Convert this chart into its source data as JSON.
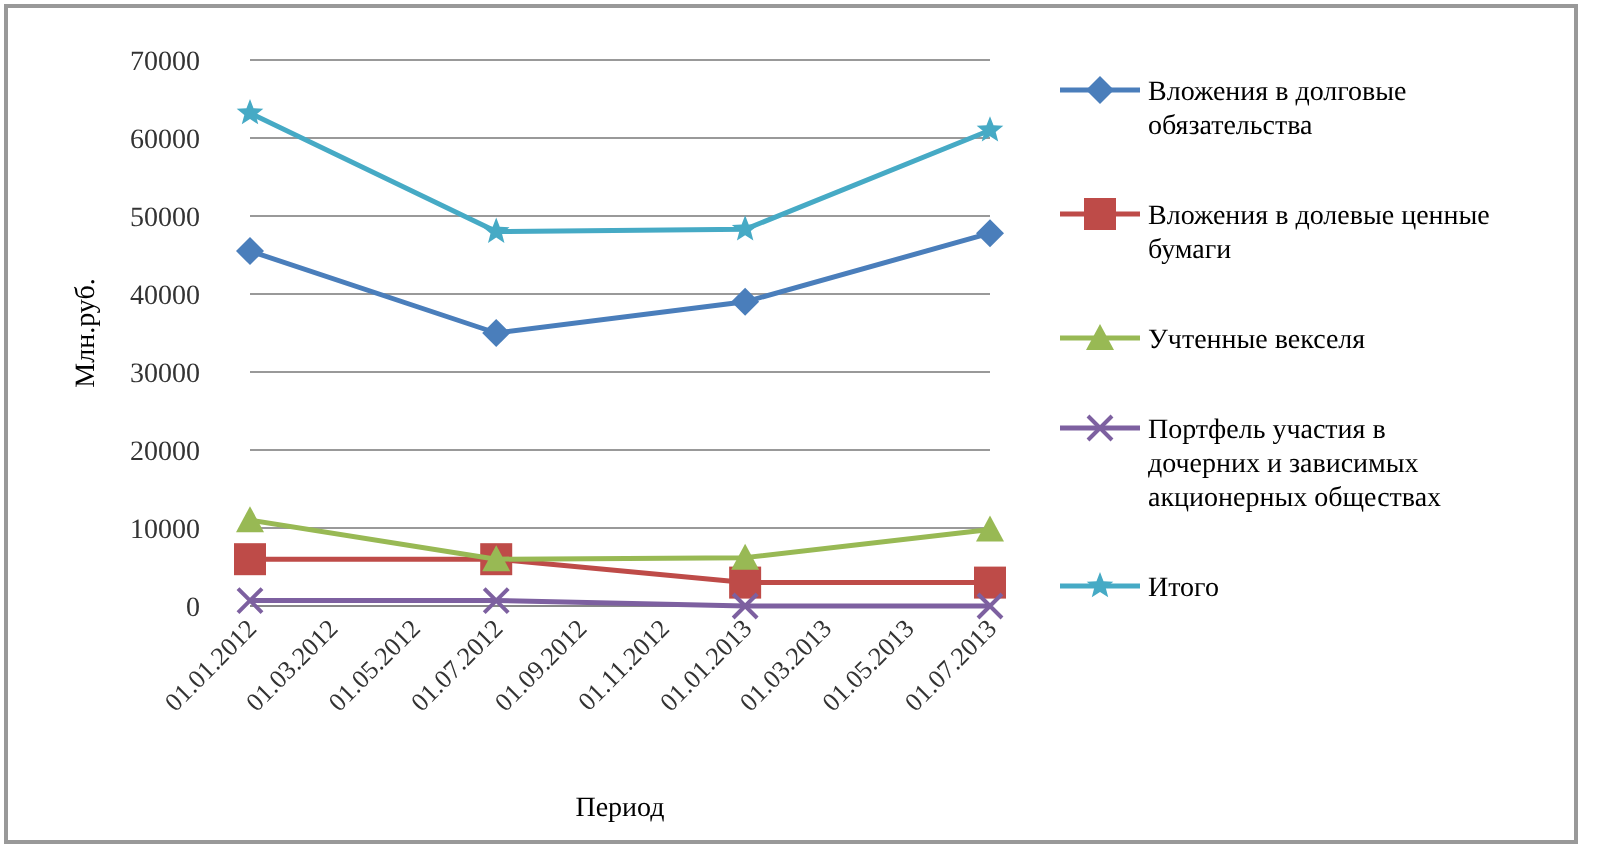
{
  "chart_data": {
    "type": "line",
    "xlabel": "Период",
    "ylabel": "Млн.руб.",
    "x": [
      "2012-01-01",
      "2012-07-01",
      "2013-01-01",
      "2013-07-01"
    ],
    "xlim": [
      "2012-01-01",
      "2013-07-01"
    ],
    "xticks": [
      {
        "value": "2012-01-01",
        "label": "01.01.2012"
      },
      {
        "value": "2012-03-01",
        "label": "01.03.2012"
      },
      {
        "value": "2012-05-01",
        "label": "01.05.2012"
      },
      {
        "value": "2012-07-01",
        "label": "01.07.2012"
      },
      {
        "value": "2012-09-01",
        "label": "01.09.2012"
      },
      {
        "value": "2012-11-01",
        "label": "01.11.2012"
      },
      {
        "value": "2013-01-01",
        "label": "01.01.2013"
      },
      {
        "value": "2013-03-01",
        "label": "01.03.2013"
      },
      {
        "value": "2013-05-01",
        "label": "01.05.2013"
      },
      {
        "value": "2013-07-01",
        "label": "01.07.2013"
      }
    ],
    "ylim": [
      0,
      70000
    ],
    "yticks": [
      0,
      10000,
      20000,
      30000,
      40000,
      50000,
      60000,
      70000
    ],
    "grid": "y",
    "legend": "right",
    "series": [
      {
        "name": "Вложения в долговые обязательства",
        "color": "#4a7ebb",
        "marker": "diamond",
        "values": [
          45500,
          35000,
          39000,
          47800
        ]
      },
      {
        "name": "Вложения в долевые ценные бумаги",
        "color": "#be4b48",
        "marker": "square",
        "values": [
          6000,
          6000,
          3000,
          3000
        ]
      },
      {
        "name": "Учтенные векселя",
        "color": "#98b954",
        "marker": "triangle",
        "values": [
          11000,
          6000,
          6200,
          9800
        ]
      },
      {
        "name": "Портфель участия в дочерних и зависимых акционерных обществах",
        "color": "#7d60a0",
        "marker": "cross",
        "values": [
          700,
          700,
          0,
          0
        ]
      },
      {
        "name": "Итого",
        "color": "#46aac5",
        "marker": "star",
        "values": [
          63200,
          48000,
          48300,
          61000
        ]
      }
    ]
  }
}
